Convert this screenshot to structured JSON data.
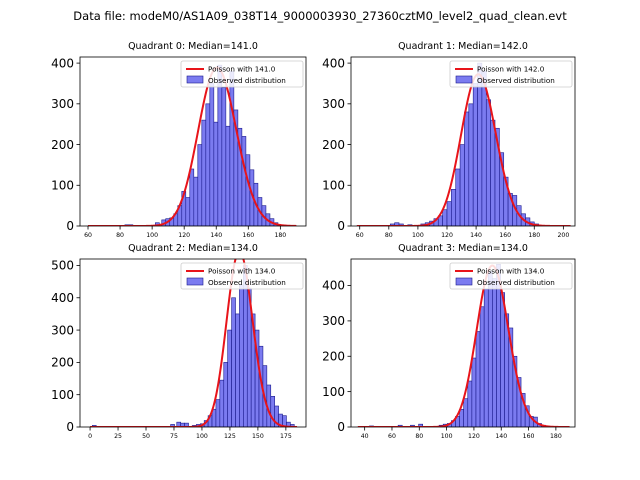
{
  "figure": {
    "suptitle": "Data file: modeM0/AS1A09_038T14_9000003930_27360cztM0_level2_quad_clean.evt"
  },
  "colors": {
    "bar_fill": "#7b7bf0",
    "bar_edge": "#1a1a8c",
    "curve": "#e8141a"
  },
  "chart_data": [
    {
      "type": "bar",
      "title": "Quadrant 0: Median=141.0",
      "legend": [
        "Poisson with 141.0",
        "Observed distribution"
      ],
      "legend_position": "top-right",
      "xlim": [
        55,
        196
      ],
      "ylim": [
        0,
        415
      ],
      "xticks": [
        60,
        80,
        100,
        120,
        140,
        160,
        180
      ],
      "yticks": [
        0,
        100,
        200,
        300,
        400
      ],
      "bin_width": 2.5,
      "bins": [
        [
          83,
          3
        ],
        [
          85.5,
          3
        ],
        [
          102,
          8
        ],
        [
          106,
          15
        ],
        [
          108.5,
          18
        ],
        [
          111,
          20
        ],
        [
          113.5,
          30
        ],
        [
          116,
          50
        ],
        [
          118.5,
          85
        ],
        [
          121,
          70
        ],
        [
          123.5,
          140
        ],
        [
          126,
          120
        ],
        [
          128.5,
          200
        ],
        [
          131,
          260
        ],
        [
          133.5,
          300
        ],
        [
          136,
          350
        ],
        [
          138.5,
          255
        ],
        [
          141,
          395
        ],
        [
          143.5,
          340
        ],
        [
          146,
          245
        ],
        [
          148.5,
          380
        ],
        [
          151,
          285
        ],
        [
          153.5,
          240
        ],
        [
          156,
          220
        ],
        [
          158.5,
          175
        ],
        [
          161,
          138
        ],
        [
          163.5,
          105
        ],
        [
          166,
          70
        ],
        [
          168.5,
          50
        ],
        [
          171,
          30
        ],
        [
          173.5,
          18
        ],
        [
          176,
          8
        ],
        [
          178.5,
          3
        ]
      ],
      "curve": {
        "mean": 141,
        "x": [
          60,
          190
        ]
      }
    },
    {
      "type": "bar",
      "title": "Quadrant 1: Median=142.0",
      "legend": [
        "Poisson with 142.0",
        "Observed distribution"
      ],
      "legend_position": "top-right",
      "xlim": [
        54,
        208
      ],
      "ylim": [
        0,
        415
      ],
      "xticks": [
        60,
        80,
        100,
        120,
        140,
        160,
        180,
        200
      ],
      "yticks": [
        0,
        100,
        200,
        300,
        400
      ],
      "bin_width": 3,
      "bins": [
        [
          81,
          5
        ],
        [
          84,
          8
        ],
        [
          87,
          5
        ],
        [
          93,
          3
        ],
        [
          102,
          5
        ],
        [
          105,
          8
        ],
        [
          108,
          12
        ],
        [
          111,
          18
        ],
        [
          114,
          25
        ],
        [
          117,
          40
        ],
        [
          120,
          60
        ],
        [
          123,
          90
        ],
        [
          126,
          140
        ],
        [
          129,
          200
        ],
        [
          132,
          280
        ],
        [
          135,
          300
        ],
        [
          138,
          350
        ],
        [
          141,
          400
        ],
        [
          144,
          380
        ],
        [
          147,
          310
        ],
        [
          150,
          260
        ],
        [
          153,
          240
        ],
        [
          156,
          180
        ],
        [
          159,
          120
        ],
        [
          162,
          80
        ],
        [
          165,
          75
        ],
        [
          168,
          50
        ],
        [
          171,
          30
        ],
        [
          174,
          20
        ],
        [
          177,
          10
        ],
        [
          180,
          5
        ]
      ],
      "curve": {
        "mean": 142,
        "x": [
          58,
          205
        ]
      }
    },
    {
      "type": "bar",
      "title": "Quadrant 2: Median=134.0",
      "legend": [
        "Poisson with 134.0",
        "Observed distribution"
      ],
      "legend_position": "top-right",
      "xlim": [
        -9,
        193
      ],
      "ylim": [
        0,
        520
      ],
      "xticks": [
        0,
        25,
        50,
        75,
        100,
        125,
        150,
        175
      ],
      "yticks": [
        0,
        100,
        200,
        300,
        400,
        500
      ],
      "bin_width": 3.5,
      "bins": [
        [
          2,
          5
        ],
        [
          72,
          8
        ],
        [
          77.5,
          15
        ],
        [
          81,
          12
        ],
        [
          84.5,
          12
        ],
        [
          91.5,
          5
        ],
        [
          95,
          8
        ],
        [
          98.5,
          10
        ],
        [
          102,
          20
        ],
        [
          105.5,
          35
        ],
        [
          109,
          55
        ],
        [
          112.5,
          85
        ],
        [
          116,
          145
        ],
        [
          119.5,
          200
        ],
        [
          123,
          300
        ],
        [
          126.5,
          400
        ],
        [
          130,
          350
        ],
        [
          133.5,
          440
        ],
        [
          137,
          500
        ],
        [
          140.5,
          430
        ],
        [
          144,
          350
        ],
        [
          147.5,
          300
        ],
        [
          151,
          250
        ],
        [
          154.5,
          190
        ],
        [
          158,
          130
        ],
        [
          161.5,
          95
        ],
        [
          165,
          65
        ],
        [
          168.5,
          40
        ],
        [
          172,
          35
        ],
        [
          175.5,
          15
        ],
        [
          179,
          8
        ]
      ],
      "curve": {
        "mean": 134,
        "x": [
          0,
          185
        ]
      }
    },
    {
      "type": "bar",
      "title": "Quadrant 3: Median=134.0",
      "legend": [
        "Poisson with 134.0",
        "Observed distribution"
      ],
      "legend_position": "top-right",
      "xlim": [
        30,
        194
      ],
      "ylim": [
        0,
        475
      ],
      "xticks": [
        40,
        60,
        80,
        100,
        120,
        140,
        160,
        180
      ],
      "yticks": [
        0,
        100,
        200,
        300,
        400
      ],
      "bin_width": 3,
      "bins": [
        [
          43.5,
          3
        ],
        [
          64.5,
          5
        ],
        [
          73.5,
          5
        ],
        [
          79.5,
          8
        ],
        [
          94.5,
          5
        ],
        [
          97.5,
          8
        ],
        [
          100.5,
          10
        ],
        [
          103.5,
          18
        ],
        [
          106.5,
          30
        ],
        [
          109.5,
          50
        ],
        [
          112.5,
          80
        ],
        [
          115.5,
          130
        ],
        [
          118.5,
          195
        ],
        [
          121.5,
          270
        ],
        [
          124.5,
          340
        ],
        [
          127.5,
          390
        ],
        [
          130.5,
          440
        ],
        [
          133.5,
          420
        ],
        [
          136.5,
          460
        ],
        [
          139.5,
          380
        ],
        [
          142.5,
          320
        ],
        [
          145.5,
          280
        ],
        [
          148.5,
          200
        ],
        [
          151.5,
          140
        ],
        [
          154.5,
          95
        ],
        [
          157.5,
          60
        ],
        [
          160.5,
          30
        ],
        [
          163.5,
          28
        ],
        [
          166.5,
          10
        ],
        [
          169.5,
          5
        ]
      ],
      "curve": {
        "mean": 134,
        "x": [
          35,
          190
        ]
      }
    }
  ]
}
